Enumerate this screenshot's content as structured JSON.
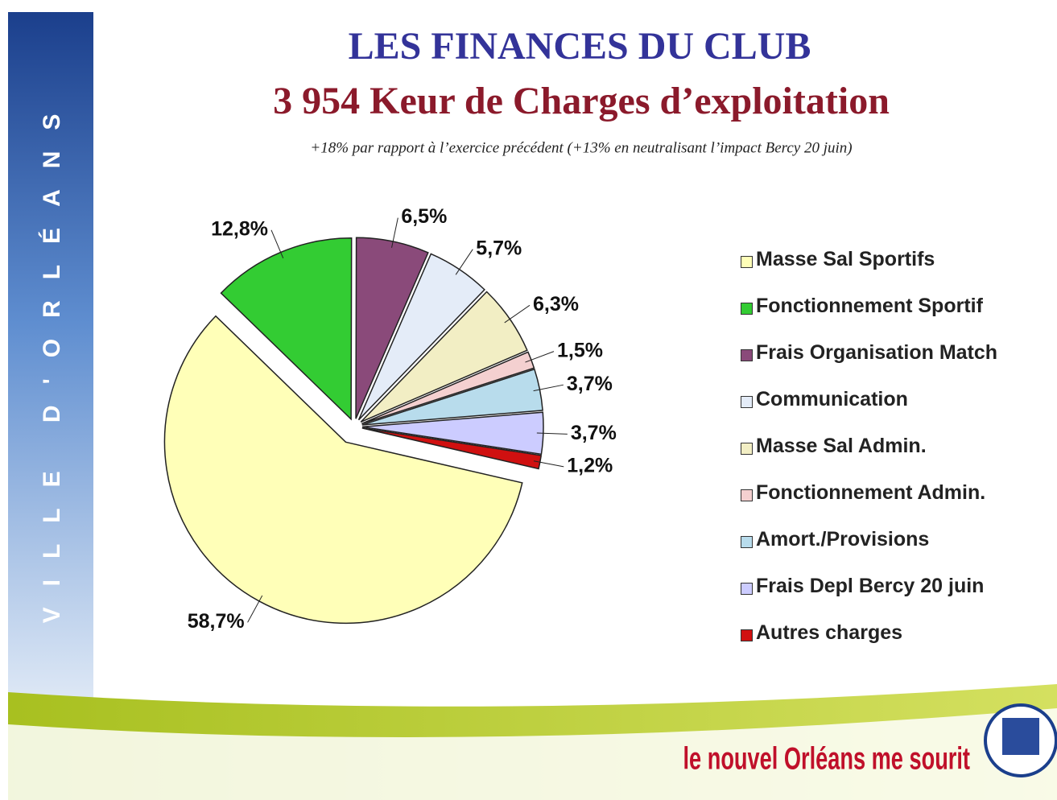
{
  "banner": "VILLE D'ORLÉANS",
  "slogan": "le nouvel Orléans me sourit",
  "chart_data": {
    "type": "pie",
    "title": "LES FINANCES DU CLUB",
    "subtitle": "3 954 Keur de Charges d’exploitation",
    "note": "+18% par rapport à l’exercice précédent (+13% en neutralisant l’impact Bercy 20 juin)",
    "categories": [
      "Masse Sal Sportifs",
      "Fonctionnement Sportif",
      "Frais Organisation Match",
      "Communication",
      "Masse Sal Admin.",
      "Fonctionnement Admin.",
      "Amort./Provisions",
      "Frais Depl Bercy 20 juin",
      "Autres charges"
    ],
    "values": [
      58.7,
      12.8,
      6.5,
      5.7,
      6.3,
      1.5,
      3.7,
      3.7,
      1.2
    ],
    "value_labels": [
      "58,7%",
      "12,8%",
      "6,5%",
      "5,7%",
      "6,3%",
      "1,5%",
      "3,7%",
      "3,7%",
      "1,2%"
    ],
    "colors": [
      "#ffffb8",
      "#33cc33",
      "#8a4a7a",
      "#e4ecf8",
      "#f2eec4",
      "#f4d0d0",
      "#b8dcec",
      "#ccccff",
      "#d01010"
    ],
    "legend": "right"
  }
}
